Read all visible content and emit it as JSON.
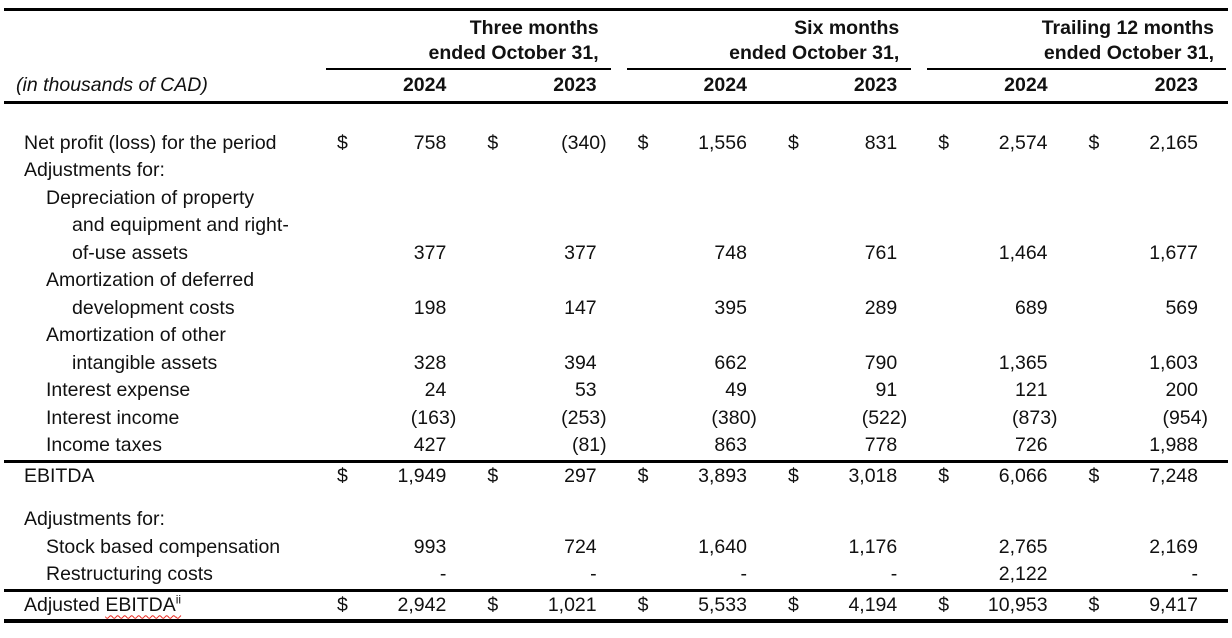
{
  "meta": {
    "currency_symbol": "$"
  },
  "colors": {
    "text": "#111111",
    "rule": "#000000",
    "squiggle_underline": "#e8251d"
  },
  "header": {
    "unit_label": "(in thousands of CAD)",
    "periods": [
      {
        "line1": "Three months",
        "line2": "ended October 31,"
      },
      {
        "line1": "Six months",
        "line2": "ended October 31,"
      },
      {
        "line1": "Trailing 12 months",
        "line2": "ended October 31,"
      }
    ],
    "year_columns": [
      "2024",
      "2023",
      "2024",
      "2023",
      "2024",
      "2023"
    ]
  },
  "rows": [
    {
      "id": "spacer-top",
      "type": "spacer",
      "height": 27
    },
    {
      "id": "net-profit",
      "label": "Net profit (loss) for the period",
      "indent": 0,
      "dollar": true,
      "values": [
        "758",
        "(340)",
        "1,556",
        "831",
        "2,574",
        "2,165"
      ]
    },
    {
      "id": "adjustments-for-1",
      "label": "Adjustments for:",
      "indent": 0,
      "values": [
        "",
        "",
        "",
        "",
        "",
        ""
      ]
    },
    {
      "id": "depreciation-line-1",
      "label": "Depreciation of property",
      "indent": 1,
      "values": [
        "",
        "",
        "",
        "",
        "",
        ""
      ]
    },
    {
      "id": "depreciation-line-2",
      "label": "and equipment and right-",
      "indent": 2,
      "values": [
        "",
        "",
        "",
        "",
        "",
        ""
      ]
    },
    {
      "id": "depreciation-line-3",
      "label": "of-use assets",
      "indent": 2,
      "values": [
        "377",
        "377",
        "748",
        "761",
        "1,464",
        "1,677"
      ]
    },
    {
      "id": "amortization-deferred-line-1",
      "label": "Amortization of deferred",
      "indent": 1,
      "values": [
        "",
        "",
        "",
        "",
        "",
        ""
      ]
    },
    {
      "id": "amortization-deferred-line-2",
      "label": "development costs",
      "indent": 2,
      "values": [
        "198",
        "147",
        "395",
        "289",
        "689",
        "569"
      ]
    },
    {
      "id": "amortization-other-line-1",
      "label": "Amortization of other",
      "indent": 1,
      "values": [
        "",
        "",
        "",
        "",
        "",
        ""
      ]
    },
    {
      "id": "amortization-other-line-2",
      "label": "intangible assets",
      "indent": 2,
      "values": [
        "328",
        "394",
        "662",
        "790",
        "1,365",
        "1,603"
      ]
    },
    {
      "id": "interest-expense",
      "label": "Interest expense",
      "indent": 1,
      "values": [
        "24",
        "53",
        "49",
        "91",
        "121",
        "200"
      ]
    },
    {
      "id": "interest-income",
      "label": "Interest income",
      "indent": 1,
      "values": [
        "(163)",
        "(253)",
        "(380)",
        "(522)",
        "(873)",
        "(954)"
      ]
    },
    {
      "id": "income-taxes",
      "label": "Income taxes",
      "indent": 1,
      "values": [
        "427",
        "(81)",
        "863",
        "778",
        "726",
        "1,988"
      ]
    },
    {
      "id": "ebitda",
      "label": "EBITDA",
      "indent": 0,
      "dollar": true,
      "rule_above": true,
      "values": [
        "1,949",
        "297",
        "3,893",
        "3,018",
        "6,066",
        "7,248"
      ]
    },
    {
      "id": "spacer-mid",
      "type": "spacer",
      "height": 16
    },
    {
      "id": "adjustments-for-2",
      "label": "Adjustments for:",
      "indent": 0,
      "values": [
        "",
        "",
        "",
        "",
        "",
        ""
      ]
    },
    {
      "id": "stock-based-compensation",
      "label": "Stock based compensation",
      "indent": 1,
      "values": [
        "993",
        "724",
        "1,640",
        "1,176",
        "2,765",
        "2,169"
      ]
    },
    {
      "id": "restructuring-costs",
      "label": "Restructuring costs",
      "indent": 1,
      "values": [
        "-",
        "-",
        "-",
        "-",
        "2,122",
        "-"
      ]
    },
    {
      "id": "adjusted-ebitda",
      "indent": 0,
      "dollar": true,
      "rule_above": true,
      "total": true,
      "label_prefix": "Adjusted ",
      "label_squiggle": "EBITDA",
      "label_sup": "ii",
      "values": [
        "2,942",
        "1,021",
        "5,533",
        "4,194",
        "10,953",
        "9,417"
      ]
    }
  ]
}
